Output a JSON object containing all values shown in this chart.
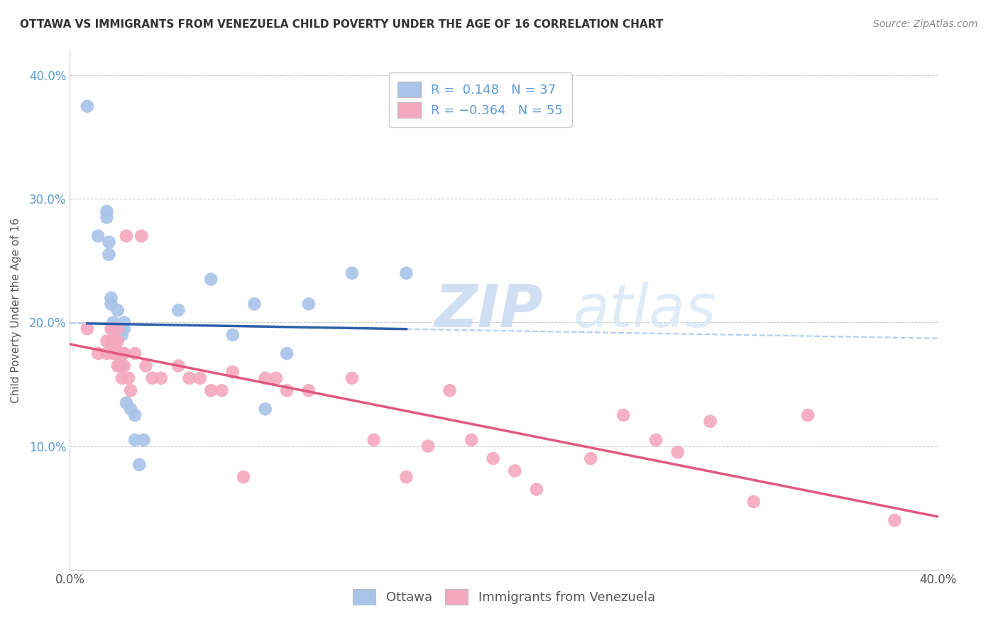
{
  "title": "OTTAWA VS IMMIGRANTS FROM VENEZUELA CHILD POVERTY UNDER THE AGE OF 16 CORRELATION CHART",
  "source": "Source: ZipAtlas.com",
  "ylabel": "Child Poverty Under the Age of 16",
  "xlim": [
    0.0,
    0.4
  ],
  "ylim": [
    0.0,
    0.42
  ],
  "ottawa_color": "#a8c4e8",
  "venezuela_color": "#f4a8bf",
  "ottawa_line_color": "#2e5faa",
  "venezuela_line_color": "#e05880",
  "dashed_line_color": "#b0ccee",
  "watermark_zip": "ZIP",
  "watermark_atlas": "atlas",
  "legend_label_ottawa": "Ottawa",
  "legend_label_venezuela": "Immigrants from Venezuela",
  "ottawa_x": [
    0.008,
    0.013,
    0.017,
    0.017,
    0.018,
    0.018,
    0.019,
    0.019,
    0.02,
    0.02,
    0.021,
    0.021,
    0.021,
    0.022,
    0.022,
    0.023,
    0.023,
    0.024,
    0.024,
    0.024,
    0.025,
    0.025,
    0.026,
    0.028,
    0.03,
    0.03,
    0.032,
    0.034,
    0.05,
    0.065,
    0.075,
    0.085,
    0.09,
    0.1,
    0.11,
    0.13,
    0.155
  ],
  "ottawa_y": [
    0.375,
    0.27,
    0.285,
    0.29,
    0.255,
    0.265,
    0.215,
    0.22,
    0.2,
    0.195,
    0.195,
    0.19,
    0.185,
    0.175,
    0.21,
    0.175,
    0.175,
    0.175,
    0.165,
    0.19,
    0.2,
    0.195,
    0.135,
    0.13,
    0.125,
    0.105,
    0.085,
    0.105,
    0.21,
    0.235,
    0.19,
    0.215,
    0.13,
    0.175,
    0.215,
    0.24,
    0.24
  ],
  "venezuela_x": [
    0.008,
    0.013,
    0.017,
    0.017,
    0.019,
    0.019,
    0.02,
    0.021,
    0.021,
    0.022,
    0.022,
    0.022,
    0.022,
    0.023,
    0.023,
    0.024,
    0.024,
    0.025,
    0.025,
    0.026,
    0.027,
    0.028,
    0.03,
    0.033,
    0.035,
    0.038,
    0.042,
    0.05,
    0.055,
    0.06,
    0.065,
    0.07,
    0.075,
    0.08,
    0.09,
    0.095,
    0.1,
    0.11,
    0.13,
    0.14,
    0.155,
    0.165,
    0.175,
    0.185,
    0.195,
    0.205,
    0.215,
    0.24,
    0.255,
    0.27,
    0.28,
    0.295,
    0.315,
    0.34,
    0.38
  ],
  "venezuela_y": [
    0.195,
    0.175,
    0.185,
    0.175,
    0.195,
    0.185,
    0.175,
    0.185,
    0.175,
    0.165,
    0.175,
    0.185,
    0.195,
    0.165,
    0.175,
    0.155,
    0.175,
    0.165,
    0.175,
    0.27,
    0.155,
    0.145,
    0.175,
    0.27,
    0.165,
    0.155,
    0.155,
    0.165,
    0.155,
    0.155,
    0.145,
    0.145,
    0.16,
    0.075,
    0.155,
    0.155,
    0.145,
    0.145,
    0.155,
    0.105,
    0.075,
    0.1,
    0.145,
    0.105,
    0.09,
    0.08,
    0.065,
    0.09,
    0.125,
    0.105,
    0.095,
    0.12,
    0.055,
    0.125,
    0.04
  ]
}
